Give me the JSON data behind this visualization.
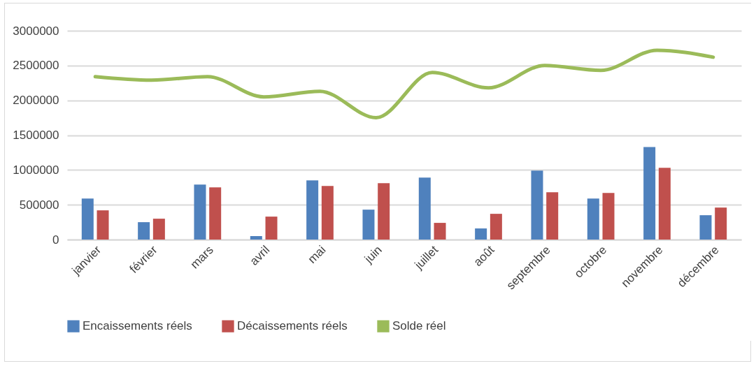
{
  "chart_data": {
    "type": "bar",
    "categories": [
      "janvier",
      "février",
      "mars",
      "avril",
      "mai",
      "juin",
      "juillet",
      "août",
      "septembre",
      "octobre",
      "novembre",
      "décembre"
    ],
    "series": [
      {
        "name": "Encaissements réels",
        "color": "#4f81bd",
        "values": [
          590000,
          250000,
          790000,
          50000,
          850000,
          430000,
          890000,
          160000,
          990000,
          590000,
          1330000,
          350000
        ]
      },
      {
        "name": "Décaissements réels",
        "color": "#c0504d",
        "values": [
          420000,
          300000,
          750000,
          330000,
          770000,
          810000,
          240000,
          370000,
          680000,
          670000,
          1030000,
          460000
        ]
      },
      {
        "name": "Solde réel",
        "type": "line",
        "color": "#9bbb59",
        "values": [
          2340000,
          2290000,
          2340000,
          2050000,
          2130000,
          1750000,
          2400000,
          2180000,
          2500000,
          2430000,
          2720000,
          2620000
        ]
      }
    ],
    "ylim": [
      0,
      3000000
    ],
    "yticks": [
      0,
      500000,
      1000000,
      1500000,
      2000000,
      2500000,
      3000000
    ],
    "grid": "y",
    "legend": "bottom"
  }
}
